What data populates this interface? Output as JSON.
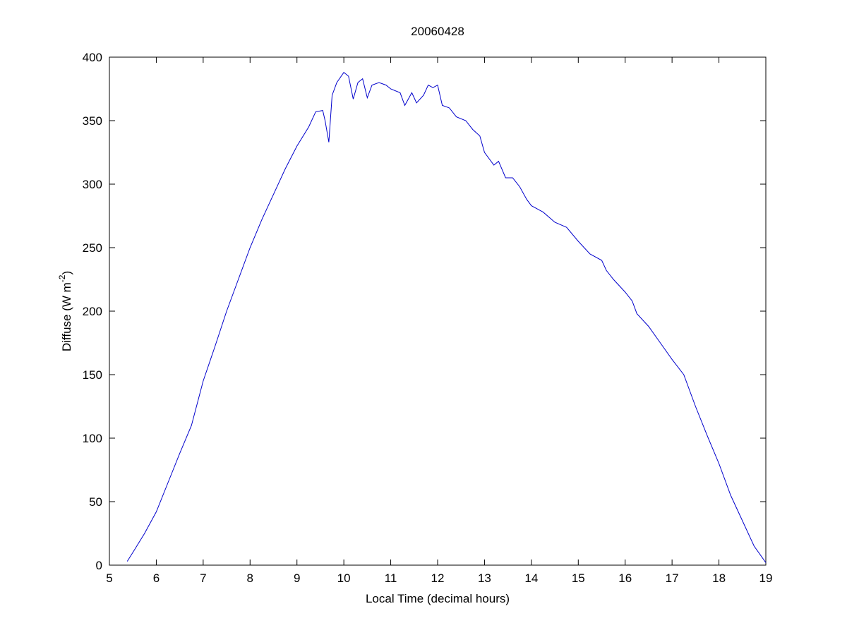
{
  "chart_data": {
    "type": "line",
    "title": "20060428",
    "xlabel": "Local Time (decimal hours)",
    "ylabel": [
      "Diffuse (W m",
      "-2",
      ")"
    ],
    "xlim": [
      5,
      19
    ],
    "ylim": [
      0,
      400
    ],
    "xticks": [
      5,
      6,
      7,
      8,
      9,
      10,
      11,
      12,
      13,
      14,
      15,
      16,
      17,
      18,
      19
    ],
    "yticks": [
      0,
      50,
      100,
      150,
      200,
      250,
      300,
      350,
      400
    ],
    "grid": false,
    "series": [
      {
        "name": null,
        "color": "#0000cc",
        "x": [
          5.38,
          5.5,
          5.75,
          6.0,
          6.25,
          6.5,
          6.75,
          7.0,
          7.25,
          7.5,
          7.75,
          8.0,
          8.25,
          8.5,
          8.75,
          9.0,
          9.25,
          9.4,
          9.55,
          9.6,
          9.68,
          9.75,
          9.85,
          10.0,
          10.1,
          10.2,
          10.3,
          10.4,
          10.5,
          10.6,
          10.75,
          10.9,
          11.0,
          11.2,
          11.3,
          11.45,
          11.55,
          11.7,
          11.8,
          11.9,
          12.0,
          12.1,
          12.25,
          12.4,
          12.6,
          12.75,
          12.9,
          13.0,
          13.2,
          13.3,
          13.45,
          13.6,
          13.75,
          13.9,
          14.0,
          14.25,
          14.5,
          14.75,
          15.0,
          15.25,
          15.5,
          15.6,
          15.75,
          16.0,
          16.15,
          16.25,
          16.5,
          16.75,
          17.0,
          17.25,
          17.5,
          17.75,
          18.0,
          18.25,
          18.5,
          18.75,
          19.0
        ],
        "values": [
          3,
          10,
          25,
          42,
          65,
          88,
          110,
          145,
          172,
          200,
          225,
          250,
          272,
          292,
          312,
          330,
          345,
          357,
          358,
          350,
          333,
          370,
          380,
          388,
          385,
          367,
          380,
          383,
          368,
          378,
          380,
          378,
          375,
          372,
          362,
          372,
          364,
          370,
          378,
          376,
          378,
          362,
          360,
          353,
          350,
          343,
          338,
          325,
          315,
          318,
          305,
          305,
          298,
          288,
          283,
          278,
          270,
          266,
          255,
          245,
          240,
          232,
          225,
          215,
          208,
          198,
          188,
          175,
          162,
          150,
          125,
          102,
          80,
          55,
          35,
          15,
          2
        ]
      }
    ]
  }
}
